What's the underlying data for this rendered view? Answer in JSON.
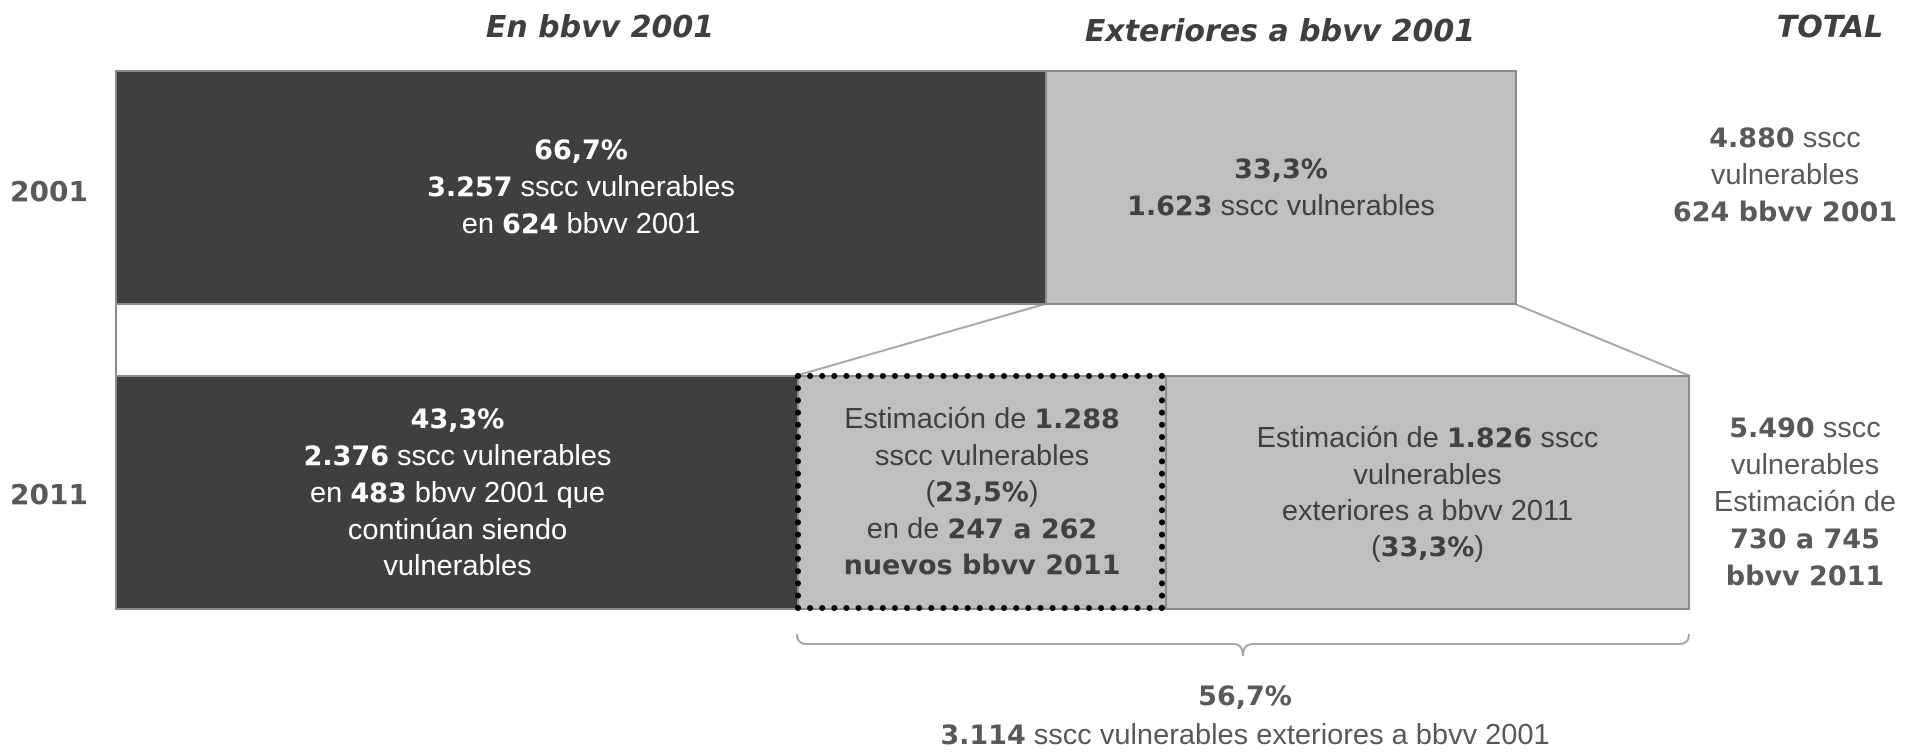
{
  "headers": {
    "in_bbvv": "En bbvv 2001",
    "outside_bbvv": "Exteriores a bbvv 2001",
    "total": "TOTAL"
  },
  "years": {
    "y2001": "2001",
    "y2011": "2011"
  },
  "row2001": {
    "in_box": {
      "pct": "66,7%",
      "count": "3.257",
      "count_suffix": " sscc vulnerables",
      "prefix_en": "en ",
      "bbvv": "624",
      "bbvv_suffix": " bbvv 2001"
    },
    "out_box": {
      "pct": "33,3%",
      "count": "1.623",
      "count_suffix": " sscc vulnerables"
    },
    "total": {
      "count": "4.880",
      "count_suffix": " sscc",
      "line2": "vulnerables",
      "bbvv_line": "624 bbvv 2001"
    }
  },
  "row2011": {
    "in_box": {
      "pct": "43,3%",
      "count": "2.376",
      "count_suffix": " sscc vulnerables",
      "prefix_en": "en ",
      "bbvv": "483",
      "bbvv_suffix": " bbvv 2001 que",
      "line4": "continúan siendo",
      "line5": "vulnerables"
    },
    "new_box": {
      "prefix": "Estimación de ",
      "count": "1.288",
      "line2": "sscc vulnerables",
      "paren_open": "(",
      "pct": "23,5%",
      "paren_close": ")",
      "prefix_en": "en de ",
      "range": "247 a 262",
      "line5": "nuevos bbvv 2011"
    },
    "ext_box": {
      "prefix": "Estimación de ",
      "count": "1.826",
      "count_suffix": " sscc",
      "line2": "vulnerables",
      "line3": "exteriores a bbvv 2011",
      "paren_open": "(",
      "pct": "33,3%",
      "paren_close": ")"
    },
    "total": {
      "count": "5.490",
      "count_suffix": " sscc",
      "line2": "vulnerables",
      "line3": "Estimación de",
      "range": "730 a 745",
      "bbvv_line": "bbvv 2011"
    }
  },
  "bracket_label": {
    "pct": "56,7%",
    "count": "3.114",
    "count_suffix": " sscc vulnerables exteriores a bbvv 2001"
  },
  "colors": {
    "dark_box": "#3f3f3f",
    "light_box": "#bfbfbf",
    "text_gray": "#595959"
  }
}
